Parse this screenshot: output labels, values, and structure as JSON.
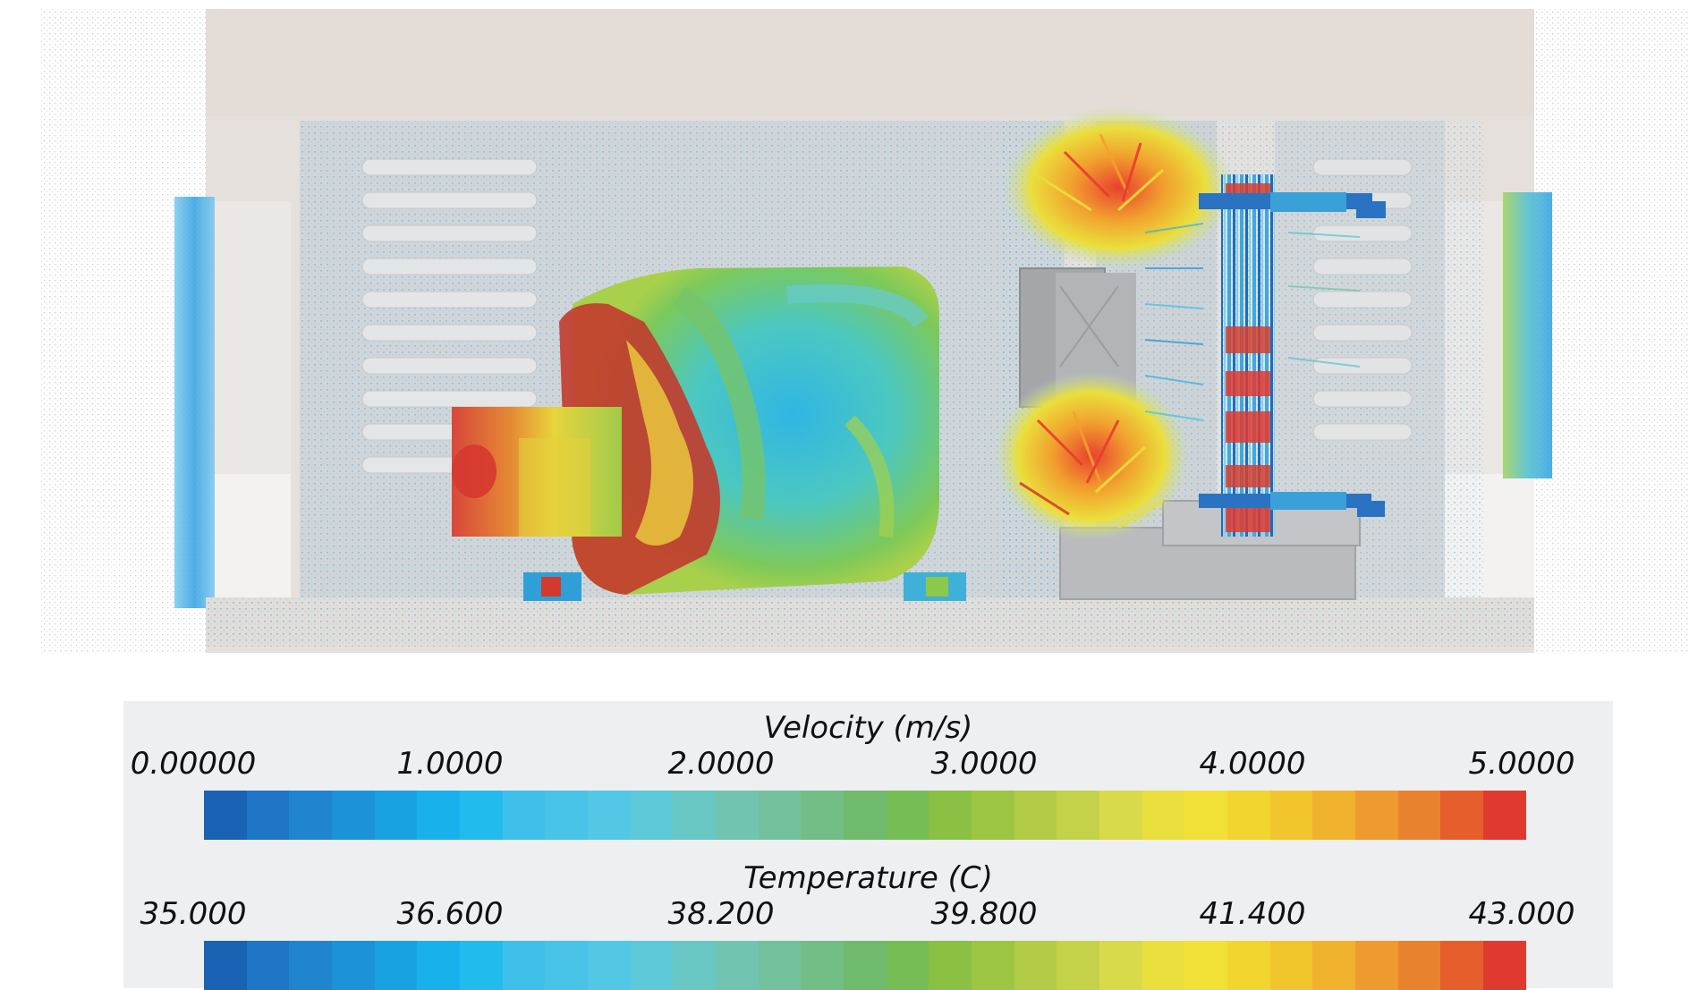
{
  "legends": [
    {
      "title": "Velocity (m/s)",
      "ticks": [
        "0.00000",
        "1.0000",
        "2.0000",
        "3.0000",
        "4.0000",
        "5.0000"
      ]
    },
    {
      "title": "Temperature (C)",
      "ticks": [
        "35.000",
        "36.600",
        "38.200",
        "39.800",
        "41.400",
        "43.000"
      ]
    }
  ],
  "colormap": [
    "#1a62b4",
    "#1f75c6",
    "#2184cf",
    "#1c93d8",
    "#18a2e2",
    "#19b1ec",
    "#22bbee",
    "#3fc0ea",
    "#49c3e8",
    "#52c7e6",
    "#5dc8d8",
    "#68c7c3",
    "#70c4b0",
    "#73c19c",
    "#73bd86",
    "#70ba6d",
    "#76bd55",
    "#8ac043",
    "#9dc544",
    "#b1cb47",
    "#c4d249",
    "#d8da4a",
    "#eadf3c",
    "#f1e036",
    "#f2d52f",
    "#f2c52d",
    "#f1b22e",
    "#ee9a2e",
    "#e9822e",
    "#e65e2c",
    "#e03a30"
  ],
  "scene_colors": {
    "housing": "#e9e3df",
    "panel": "#cfd2d4",
    "hot": "#d23a2f",
    "warm": "#f2dc3a",
    "mid": "#5cbf6a",
    "cool": "#32b8e6",
    "cold": "#1a5fb4"
  }
}
